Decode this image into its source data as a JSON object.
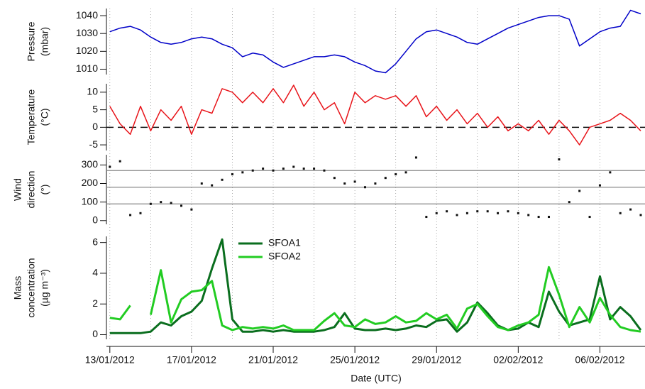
{
  "chart_data": {
    "type": "line",
    "xlabel": "Date (UTC)",
    "x": [
      "2012-01-13T00:00",
      "2012-01-13T12:00",
      "2012-01-14T00:00",
      "2012-01-14T12:00",
      "2012-01-15T00:00",
      "2012-01-15T12:00",
      "2012-01-16T00:00",
      "2012-01-16T12:00",
      "2012-01-17T00:00",
      "2012-01-17T12:00",
      "2012-01-18T00:00",
      "2012-01-18T12:00",
      "2012-01-19T00:00",
      "2012-01-19T12:00",
      "2012-01-20T00:00",
      "2012-01-20T12:00",
      "2012-01-21T00:00",
      "2012-01-21T12:00",
      "2012-01-22T00:00",
      "2012-01-22T12:00",
      "2012-01-23T00:00",
      "2012-01-23T12:00",
      "2012-01-24T00:00",
      "2012-01-24T12:00",
      "2012-01-25T00:00",
      "2012-01-25T12:00",
      "2012-01-26T00:00",
      "2012-01-26T12:00",
      "2012-01-27T00:00",
      "2012-01-27T12:00",
      "2012-01-28T00:00",
      "2012-01-28T12:00",
      "2012-01-29T00:00",
      "2012-01-29T12:00",
      "2012-01-30T00:00",
      "2012-01-30T12:00",
      "2012-01-31T00:00",
      "2012-01-31T12:00",
      "2012-02-01T00:00",
      "2012-02-01T12:00",
      "2012-02-02T00:00",
      "2012-02-02T12:00",
      "2012-02-03T00:00",
      "2012-02-03T12:00",
      "2012-02-04T00:00",
      "2012-02-04T12:00",
      "2012-02-05T00:00",
      "2012-02-05T12:00",
      "2012-02-06T00:00",
      "2012-02-06T12:00",
      "2012-02-07T00:00",
      "2012-02-07T12:00",
      "2012-02-08T00:00"
    ],
    "xlim": [
      "2012-01-12T20:00",
      "2012-02-08T05:00"
    ],
    "xticks": [
      {
        "value": "2012-01-13T00:00",
        "label": "13/01/2012"
      },
      {
        "value": "2012-01-17T00:00",
        "label": "17/01/2012"
      },
      {
        "value": "2012-01-21T00:00",
        "label": "21/01/2012"
      },
      {
        "value": "2012-01-25T00:00",
        "label": "25/01/2012"
      },
      {
        "value": "2012-01-29T00:00",
        "label": "29/01/2012"
      },
      {
        "value": "2012-02-02T00:00",
        "label": "02/02/2012"
      },
      {
        "value": "2012-02-06T00:00",
        "label": "06/02/2012"
      }
    ],
    "grid": "dotted",
    "panels": [
      {
        "type": "line",
        "ylabel": [
          "Pressure",
          "(mbar)"
        ],
        "ylim": [
          1007,
          1044
        ],
        "yticks": [
          1010,
          1020,
          1030,
          1040
        ],
        "series": [
          {
            "color": "#0000c8",
            "values": [
              1031,
              1033,
              1034,
              1032,
              1028,
              1025,
              1024,
              1025,
              1027,
              1028,
              1027,
              1024,
              1022,
              1017,
              1019,
              1018,
              1014,
              1011,
              1013,
              1015,
              1017,
              1017,
              1018,
              1017,
              1014,
              1012,
              1009,
              1008,
              1013,
              1020,
              1027,
              1031,
              1032,
              1030,
              1028,
              1025,
              1024,
              1027,
              1030,
              1033,
              1035,
              1037,
              1039,
              1040,
              1040,
              1038,
              1023,
              1027,
              1031,
              1033,
              1034,
              1043,
              1041
            ]
          }
        ]
      },
      {
        "type": "line",
        "ylabel": [
          "Temperature",
          "(°C)"
        ],
        "ylim": [
          -6.6,
          12.4
        ],
        "yticks": [
          -5,
          0,
          5,
          10
        ],
        "hlines": [
          0
        ],
        "series": [
          {
            "color": "#e8141a",
            "values": [
              6,
              1,
              -2,
              6,
              -1,
              5,
              2,
              6,
              -2,
              5,
              4,
              11,
              10,
              7,
              10,
              7,
              11,
              7,
              12,
              6,
              10,
              5,
              7,
              1,
              10,
              7,
              9,
              8,
              9,
              6,
              9,
              3,
              6,
              2,
              5,
              1,
              4,
              0,
              3,
              -1,
              1,
              -1,
              2,
              -2,
              2,
              -1,
              -5,
              0,
              1,
              2,
              4,
              2,
              -1
            ]
          }
        ]
      },
      {
        "type": "scatter",
        "ylabel": [
          "Wind",
          "direction",
          "(°)"
        ],
        "ylim": [
          -20,
          355
        ],
        "yticks": [
          0,
          100,
          200,
          300
        ],
        "hlines": [
          90,
          180,
          270
        ],
        "series": [
          {
            "color": "#111111",
            "values": [
              290,
              320,
              30,
              40,
              90,
              100,
              95,
              80,
              60,
              200,
              190,
              220,
              250,
              260,
              270,
              280,
              270,
              280,
              290,
              280,
              280,
              270,
              230,
              200,
              210,
              180,
              200,
              230,
              250,
              260,
              340,
              20,
              40,
              50,
              30,
              40,
              50,
              50,
              40,
              50,
              40,
              30,
              20,
              20,
              330,
              100,
              160,
              20,
              190,
              260,
              40,
              60,
              30
            ]
          }
        ]
      },
      {
        "type": "line",
        "ylabel": [
          "Mass",
          "concentration",
          "(µg m⁻³)"
        ],
        "ylim": [
          -0.3,
          6.4
        ],
        "yticks": [
          0,
          2,
          4,
          6
        ],
        "legend": "top-center",
        "series": [
          {
            "name": "SFOA1",
            "color": "#0a6e1e",
            "values": [
              0.1,
              0.1,
              0.1,
              0.1,
              0.2,
              0.8,
              0.6,
              1.2,
              1.5,
              2.2,
              4.3,
              6.2,
              1.0,
              0.2,
              0.2,
              0.3,
              0.2,
              0.3,
              0.2,
              0.2,
              0.2,
              0.3,
              0.5,
              1.4,
              0.4,
              0.3,
              0.3,
              0.4,
              0.3,
              0.4,
              0.6,
              0.5,
              0.9,
              1.0,
              0.2,
              0.8,
              2.1,
              1.4,
              0.6,
              0.3,
              0.4,
              0.8,
              0.5,
              2.8,
              1.5,
              0.6,
              0.8,
              1.0,
              3.8,
              1.0,
              1.8,
              1.2,
              0.3
            ]
          },
          {
            "name": "SFOA2",
            "color": "#22cc22",
            "values": [
              1.1,
              1.0,
              1.9,
              null,
              1.3,
              4.2,
              0.8,
              2.3,
              2.8,
              2.9,
              3.5,
              0.6,
              0.3,
              0.5,
              0.4,
              0.5,
              0.4,
              0.6,
              0.3,
              0.3,
              0.3,
              0.9,
              1.4,
              0.6,
              0.5,
              1.0,
              0.7,
              0.8,
              1.2,
              0.8,
              0.9,
              1.4,
              1.0,
              1.3,
              0.4,
              1.7,
              2.0,
              1.2,
              0.5,
              0.3,
              0.6,
              0.8,
              1.3,
              4.4,
              2.6,
              0.5,
              1.8,
              0.8,
              2.4,
              1.3,
              0.5,
              0.3,
              0.2
            ]
          }
        ]
      }
    ]
  }
}
